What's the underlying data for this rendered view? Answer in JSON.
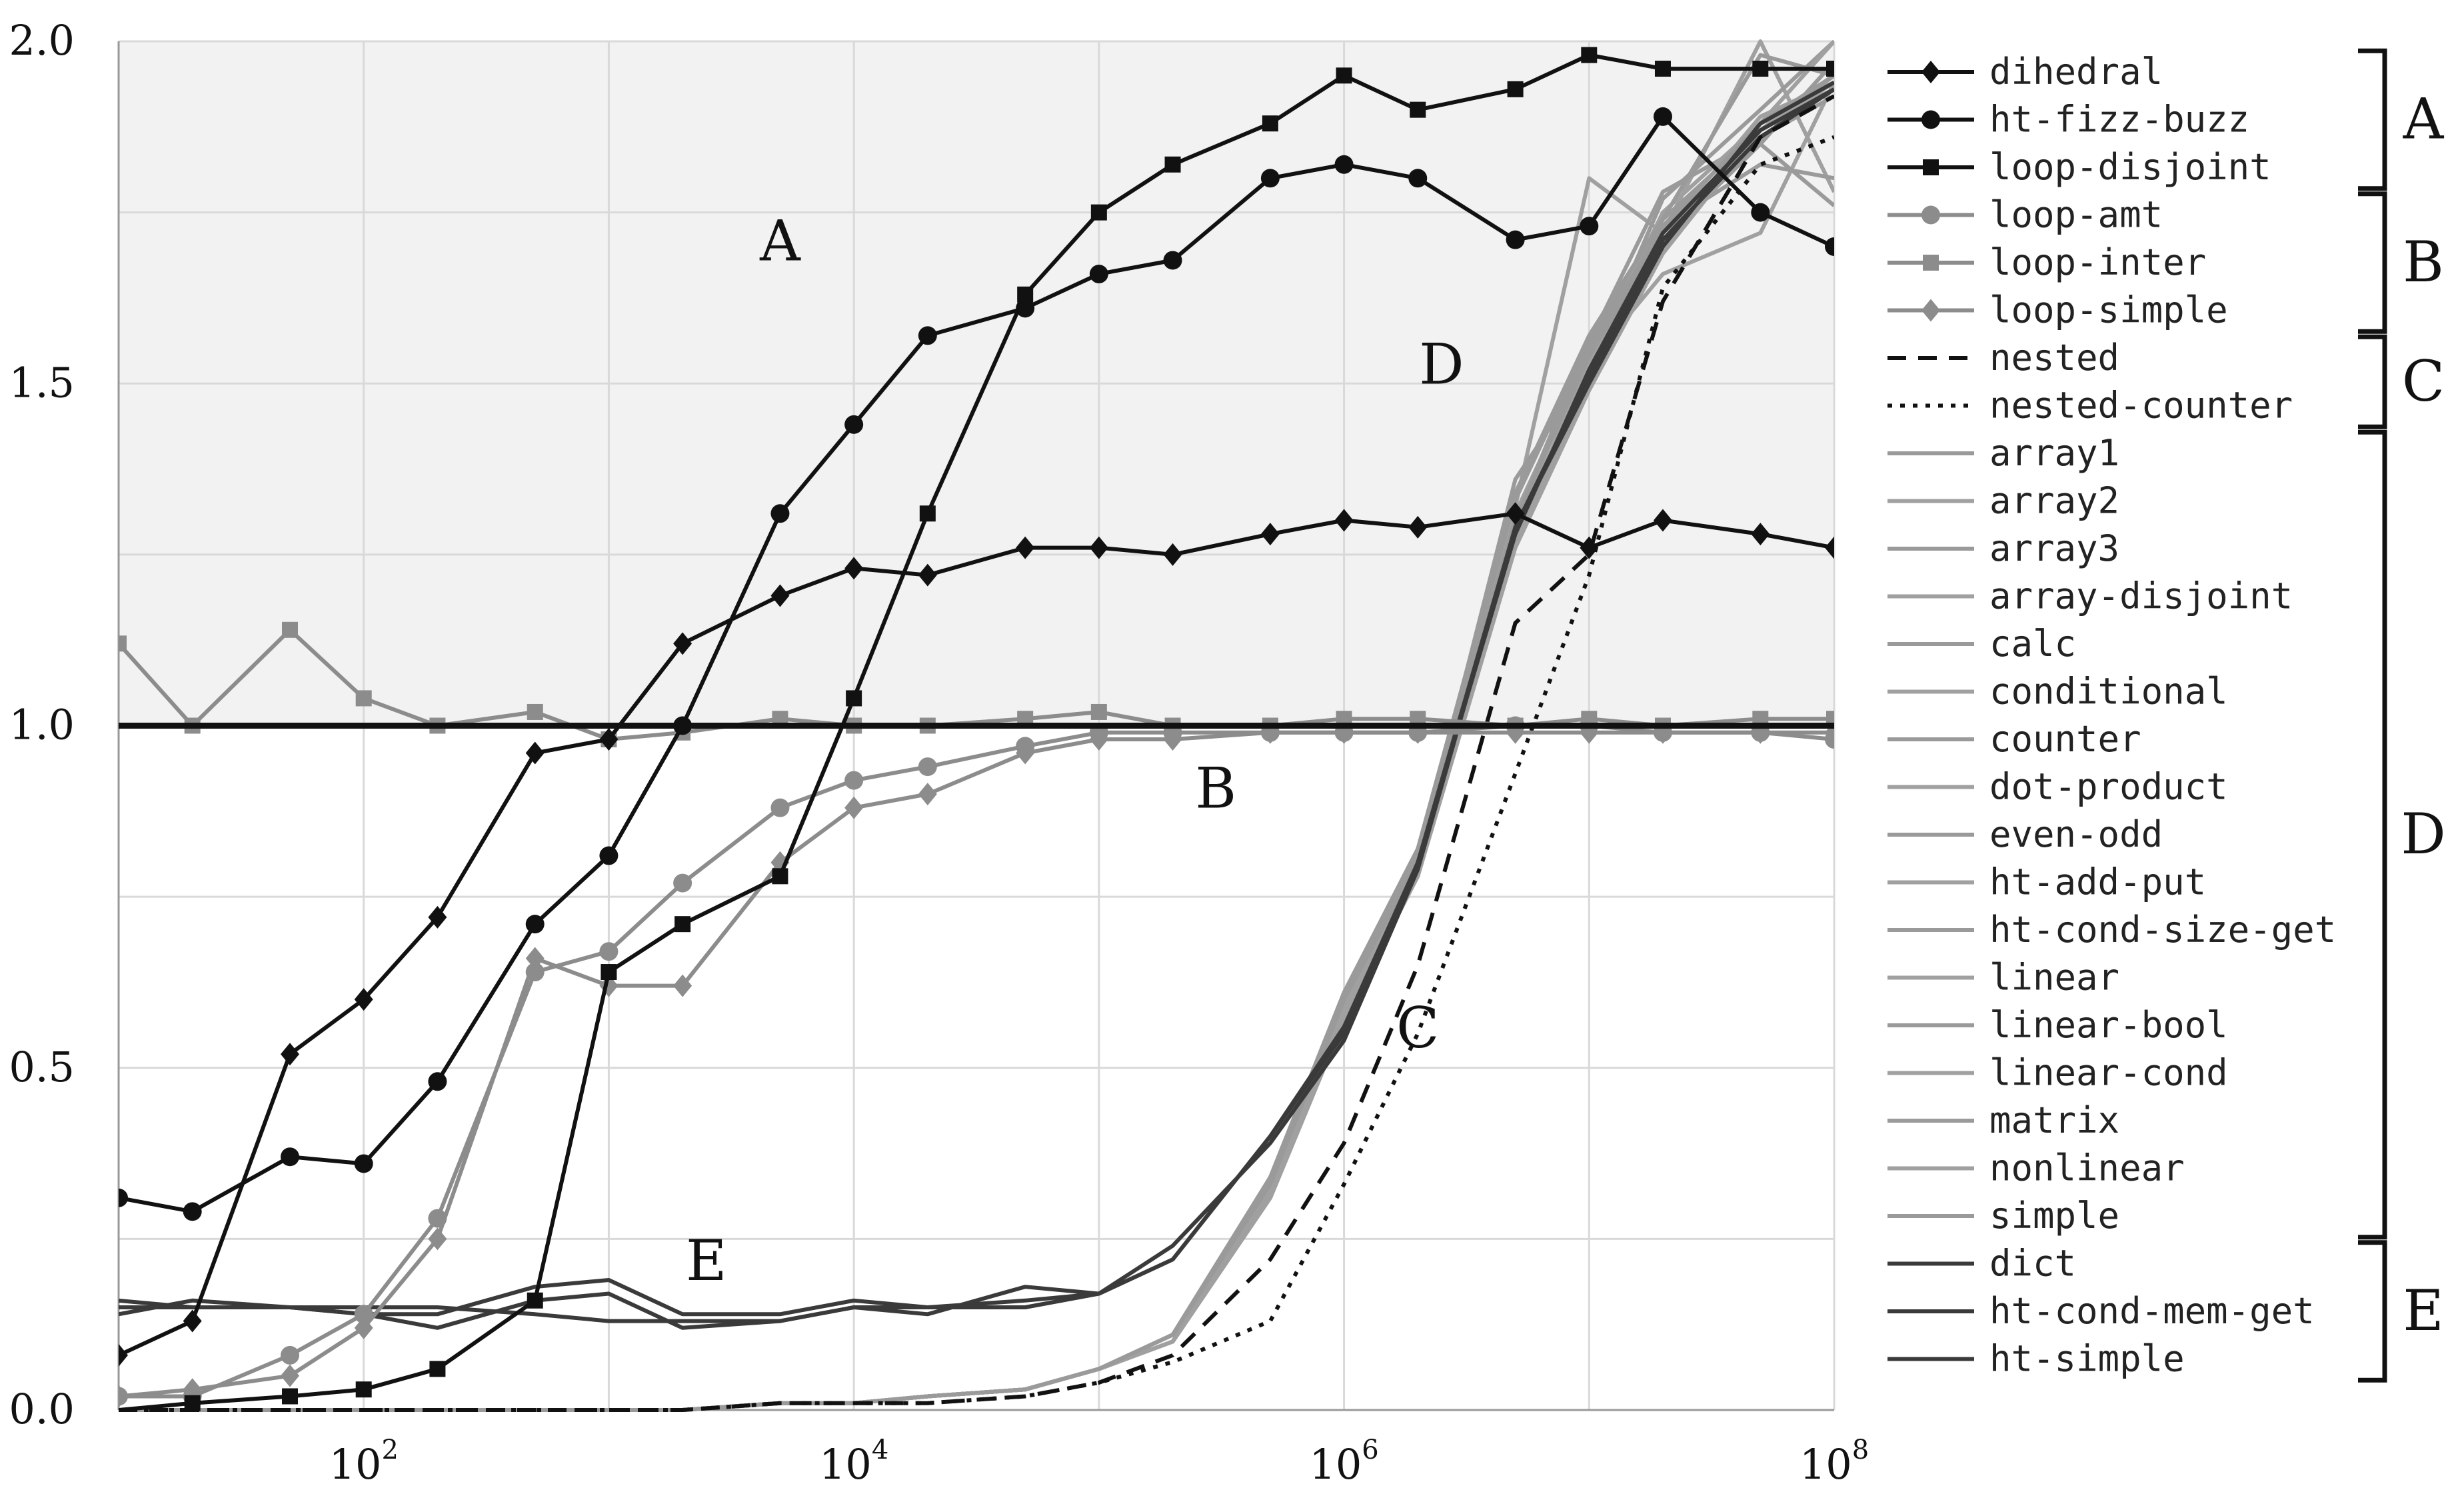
{
  "chart_data": {
    "type": "line",
    "x_scale": "log",
    "xlim": [
      10,
      100000000
    ],
    "ylim": [
      0,
      2.0
    ],
    "x_ticks": [
      {
        "value": 100,
        "base": "10",
        "exp": "2"
      },
      {
        "value": 10000,
        "base": "10",
        "exp": "4"
      },
      {
        "value": 1000000,
        "base": "10",
        "exp": "6"
      },
      {
        "value": 100000000,
        "base": "10",
        "exp": "8"
      }
    ],
    "y_ticks": [
      {
        "value": 0,
        "label": "0.0"
      },
      {
        "value": 0.5,
        "label": "0.5"
      },
      {
        "value": 1.0,
        "label": "1.0"
      },
      {
        "value": 1.5,
        "label": "1.5"
      },
      {
        "value": 2.0,
        "label": "2.0"
      }
    ],
    "grid": true,
    "shaded_region": {
      "y_from": 1.0,
      "y_to": 2.0,
      "color": "#f2f2f2"
    },
    "reference_line": {
      "y": 1.0,
      "color": "#111111"
    },
    "x": [
      10,
      20,
      50,
      100,
      200,
      500,
      1000,
      2000,
      5000,
      10000,
      20000,
      50000,
      100000,
      200000,
      500000,
      1000000,
      2000000,
      5000000,
      10000000,
      20000000,
      50000000,
      100000000
    ],
    "series": [
      {
        "name": "dihedral",
        "group": "A",
        "color": "#111111",
        "marker": "diamond",
        "dash": "solid",
        "values": [
          0.08,
          0.13,
          0.52,
          0.6,
          0.72,
          0.96,
          0.98,
          1.12,
          1.19,
          1.23,
          1.22,
          1.26,
          1.26,
          1.25,
          1.28,
          1.3,
          1.29,
          1.31,
          1.26,
          1.3,
          1.28,
          1.26
        ]
      },
      {
        "name": "ht-fizz-buzz",
        "group": "A",
        "color": "#111111",
        "marker": "circle",
        "dash": "solid",
        "values": [
          0.31,
          0.29,
          0.37,
          0.36,
          0.48,
          0.71,
          0.81,
          1.0,
          1.31,
          1.44,
          1.57,
          1.61,
          1.66,
          1.68,
          1.8,
          1.82,
          1.8,
          1.71,
          1.73,
          1.89,
          1.75,
          1.7
        ]
      },
      {
        "name": "loop-disjoint",
        "group": "A",
        "color": "#111111",
        "marker": "square",
        "dash": "solid",
        "values": [
          0.0,
          0.01,
          0.02,
          0.03,
          0.06,
          0.16,
          0.64,
          0.71,
          0.78,
          1.04,
          1.31,
          1.63,
          1.75,
          1.82,
          1.88,
          1.95,
          1.9,
          1.93,
          1.98,
          1.96,
          1.96,
          1.96
        ]
      },
      {
        "name": "loop-amt",
        "group": "B",
        "color": "#8c8c8c",
        "marker": "circle",
        "dash": "solid",
        "values": [
          0.02,
          0.02,
          0.08,
          0.14,
          0.28,
          0.64,
          0.67,
          0.77,
          0.88,
          0.92,
          0.94,
          0.97,
          0.99,
          0.99,
          0.99,
          0.99,
          0.99,
          1.0,
          1.0,
          0.99,
          0.99,
          0.98
        ]
      },
      {
        "name": "loop-inter",
        "group": "B",
        "color": "#8c8c8c",
        "marker": "square",
        "dash": "solid",
        "values": [
          1.12,
          1.0,
          1.14,
          1.04,
          1.0,
          1.02,
          0.98,
          0.99,
          1.01,
          1.0,
          1.0,
          1.01,
          1.02,
          1.0,
          1.0,
          1.01,
          1.01,
          1.0,
          1.01,
          1.0,
          1.01,
          1.01
        ]
      },
      {
        "name": "loop-simple",
        "group": "B",
        "color": "#8c8c8c",
        "marker": "diamond",
        "dash": "solid",
        "values": [
          0.02,
          0.03,
          0.05,
          0.12,
          0.25,
          0.66,
          0.62,
          0.62,
          0.8,
          0.88,
          0.9,
          0.96,
          0.98,
          0.98,
          0.99,
          0.99,
          0.99,
          0.99,
          0.99,
          0.99,
          0.99,
          0.99
        ]
      },
      {
        "name": "nested",
        "group": "C",
        "color": "#111111",
        "marker": "none",
        "dash": "dashed",
        "values": [
          0.0,
          0.0,
          0.0,
          0.0,
          0.0,
          0.0,
          0.0,
          0.0,
          0.01,
          0.01,
          0.01,
          0.02,
          0.04,
          0.08,
          0.22,
          0.39,
          0.65,
          1.15,
          1.25,
          1.62,
          1.86,
          1.92
        ]
      },
      {
        "name": "nested-counter",
        "group": "C",
        "color": "#111111",
        "marker": "none",
        "dash": "dotted",
        "values": [
          0.0,
          0.0,
          0.0,
          0.0,
          0.0,
          0.0,
          0.0,
          0.0,
          0.01,
          0.01,
          0.01,
          0.02,
          0.04,
          0.07,
          0.13,
          0.33,
          0.55,
          0.93,
          1.22,
          1.64,
          1.82,
          1.86
        ]
      },
      {
        "name": "array1",
        "group": "D",
        "color": "#9a9a9a",
        "marker": "none",
        "dash": "solid",
        "values": [
          0.0,
          0.0,
          0.0,
          0.0,
          0.0,
          0.0,
          0.0,
          0.0,
          0.01,
          0.01,
          0.02,
          0.03,
          0.06,
          0.11,
          0.33,
          0.6,
          0.8,
          1.3,
          1.55,
          1.73,
          1.88,
          1.95
        ]
      },
      {
        "name": "array2",
        "group": "D",
        "color": "#a0a0a0",
        "marker": "none",
        "dash": "solid",
        "values": [
          0.0,
          0.0,
          0.0,
          0.0,
          0.0,
          0.0,
          0.0,
          0.0,
          0.01,
          0.01,
          0.02,
          0.03,
          0.06,
          0.1,
          0.32,
          0.58,
          0.79,
          1.32,
          1.8,
          1.72,
          2.0,
          1.78
        ]
      },
      {
        "name": "array3",
        "group": "D",
        "color": "#9a9a9a",
        "marker": "none",
        "dash": "solid",
        "values": [
          0.0,
          0.0,
          0.0,
          0.0,
          0.0,
          0.0,
          0.0,
          0.0,
          0.01,
          0.01,
          0.02,
          0.03,
          0.06,
          0.11,
          0.33,
          0.59,
          0.8,
          1.36,
          1.52,
          1.77,
          1.9,
          2.0
        ]
      },
      {
        "name": "array-disjoint",
        "group": "D",
        "color": "#a0a0a0",
        "marker": "none",
        "dash": "solid",
        "values": [
          0.0,
          0.0,
          0.0,
          0.0,
          0.0,
          0.0,
          0.0,
          0.0,
          0.01,
          0.01,
          0.02,
          0.03,
          0.06,
          0.1,
          0.31,
          0.57,
          0.78,
          1.27,
          1.5,
          1.7,
          1.88,
          1.93
        ]
      },
      {
        "name": "calc",
        "group": "D",
        "color": "#9a9a9a",
        "marker": "none",
        "dash": "solid",
        "values": [
          0.0,
          0.0,
          0.0,
          0.0,
          0.0,
          0.0,
          0.0,
          0.0,
          0.01,
          0.01,
          0.02,
          0.03,
          0.06,
          0.11,
          0.34,
          0.6,
          0.81,
          1.3,
          1.56,
          1.74,
          1.87,
          1.95
        ]
      },
      {
        "name": "conditional",
        "group": "D",
        "color": "#a0a0a0",
        "marker": "none",
        "dash": "solid",
        "values": [
          0.0,
          0.0,
          0.0,
          0.0,
          0.0,
          0.0,
          0.0,
          0.0,
          0.01,
          0.01,
          0.02,
          0.03,
          0.06,
          0.1,
          0.32,
          0.58,
          0.79,
          1.28,
          1.53,
          1.66,
          1.72,
          1.94
        ]
      },
      {
        "name": "counter",
        "group": "D",
        "color": "#9a9a9a",
        "marker": "none",
        "dash": "solid",
        "values": [
          0.0,
          0.0,
          0.0,
          0.0,
          0.0,
          0.0,
          0.0,
          0.0,
          0.01,
          0.01,
          0.02,
          0.03,
          0.06,
          0.11,
          0.33,
          0.59,
          0.8,
          1.31,
          1.54,
          1.71,
          1.85,
          1.97
        ]
      },
      {
        "name": "dot-product",
        "group": "D",
        "color": "#a0a0a0",
        "marker": "none",
        "dash": "solid",
        "values": [
          0.0,
          0.0,
          0.0,
          0.0,
          0.0,
          0.0,
          0.0,
          0.0,
          0.01,
          0.01,
          0.02,
          0.03,
          0.06,
          0.1,
          0.32,
          0.58,
          0.79,
          1.29,
          1.5,
          1.72,
          1.89,
          1.94
        ]
      },
      {
        "name": "even-odd",
        "group": "D",
        "color": "#9a9a9a",
        "marker": "none",
        "dash": "solid",
        "values": [
          0.0,
          0.0,
          0.0,
          0.0,
          0.0,
          0.0,
          0.0,
          0.0,
          0.01,
          0.01,
          0.02,
          0.03,
          0.06,
          0.11,
          0.34,
          0.61,
          0.82,
          1.33,
          1.56,
          1.78,
          1.86,
          1.92
        ]
      },
      {
        "name": "ht-add-put",
        "group": "D",
        "color": "#a0a0a0",
        "marker": "none",
        "dash": "solid",
        "values": [
          0.0,
          0.0,
          0.0,
          0.0,
          0.0,
          0.0,
          0.0,
          0.0,
          0.01,
          0.01,
          0.02,
          0.03,
          0.06,
          0.1,
          0.31,
          0.57,
          0.78,
          1.26,
          1.49,
          1.69,
          1.87,
          1.95
        ]
      },
      {
        "name": "ht-cond-size-get",
        "group": "D",
        "color": "#9a9a9a",
        "marker": "none",
        "dash": "solid",
        "values": [
          0.0,
          0.0,
          0.0,
          0.0,
          0.0,
          0.0,
          0.0,
          0.0,
          0.01,
          0.01,
          0.02,
          0.03,
          0.06,
          0.11,
          0.33,
          0.6,
          0.8,
          1.3,
          1.55,
          1.73,
          1.82,
          1.8
        ]
      },
      {
        "name": "linear",
        "group": "D",
        "color": "#a0a0a0",
        "marker": "none",
        "dash": "solid",
        "values": [
          0.0,
          0.0,
          0.0,
          0.0,
          0.0,
          0.0,
          0.0,
          0.0,
          0.01,
          0.01,
          0.02,
          0.03,
          0.06,
          0.1,
          0.32,
          0.59,
          0.79,
          1.31,
          1.53,
          1.75,
          1.88,
          2.0
        ]
      },
      {
        "name": "linear-bool",
        "group": "D",
        "color": "#9a9a9a",
        "marker": "none",
        "dash": "solid",
        "values": [
          0.0,
          0.0,
          0.0,
          0.0,
          0.0,
          0.0,
          0.0,
          0.0,
          0.01,
          0.01,
          0.02,
          0.03,
          0.06,
          0.11,
          0.33,
          0.6,
          0.81,
          1.3,
          1.54,
          1.72,
          1.85,
          1.76
        ]
      },
      {
        "name": "linear-cond",
        "group": "D",
        "color": "#a0a0a0",
        "marker": "none",
        "dash": "solid",
        "values": [
          0.0,
          0.0,
          0.0,
          0.0,
          0.0,
          0.0,
          0.0,
          0.0,
          0.01,
          0.01,
          0.02,
          0.03,
          0.06,
          0.1,
          0.32,
          0.58,
          0.79,
          1.29,
          1.52,
          1.71,
          1.86,
          1.93
        ]
      },
      {
        "name": "matrix",
        "group": "D",
        "color": "#9a9a9a",
        "marker": "none",
        "dash": "solid",
        "values": [
          0.0,
          0.0,
          0.0,
          0.0,
          0.0,
          0.0,
          0.0,
          0.0,
          0.01,
          0.01,
          0.02,
          0.03,
          0.06,
          0.11,
          0.34,
          0.61,
          0.82,
          1.34,
          1.57,
          1.74,
          1.98,
          1.95
        ]
      },
      {
        "name": "nonlinear",
        "group": "D",
        "color": "#a0a0a0",
        "marker": "none",
        "dash": "solid",
        "values": [
          0.0,
          0.0,
          0.0,
          0.0,
          0.0,
          0.0,
          0.0,
          0.0,
          0.01,
          0.01,
          0.02,
          0.03,
          0.06,
          0.1,
          0.31,
          0.57,
          0.78,
          1.27,
          1.51,
          1.7,
          1.87,
          1.94
        ]
      },
      {
        "name": "simple",
        "group": "D",
        "color": "#9a9a9a",
        "marker": "none",
        "dash": "solid",
        "values": [
          0.0,
          0.0,
          0.0,
          0.0,
          0.0,
          0.0,
          0.0,
          0.0,
          0.01,
          0.01,
          0.02,
          0.03,
          0.06,
          0.11,
          0.33,
          0.6,
          0.8,
          1.3,
          1.55,
          1.73,
          1.88,
          1.95
        ]
      },
      {
        "name": "dict",
        "group": "E",
        "color": "#3a3a3a",
        "marker": "none",
        "dash": "solid",
        "values": [
          0.15,
          0.15,
          0.15,
          0.14,
          0.14,
          0.18,
          0.19,
          0.14,
          0.14,
          0.16,
          0.15,
          0.16,
          0.17,
          0.22,
          0.4,
          0.55,
          0.8,
          1.28,
          1.52,
          1.72,
          1.87,
          1.93
        ]
      },
      {
        "name": "ht-cond-mem-get",
        "group": "E",
        "color": "#3a3a3a",
        "marker": "none",
        "dash": "solid",
        "values": [
          0.14,
          0.16,
          0.15,
          0.14,
          0.12,
          0.16,
          0.17,
          0.12,
          0.13,
          0.15,
          0.14,
          0.18,
          0.17,
          0.24,
          0.39,
          0.54,
          0.79,
          1.29,
          1.51,
          1.71,
          1.86,
          1.93
        ]
      },
      {
        "name": "ht-simple",
        "group": "E",
        "color": "#3a3a3a",
        "marker": "none",
        "dash": "solid",
        "values": [
          0.16,
          0.15,
          0.15,
          0.15,
          0.15,
          0.14,
          0.13,
          0.13,
          0.13,
          0.15,
          0.15,
          0.15,
          0.17,
          0.22,
          0.4,
          0.56,
          0.8,
          1.29,
          1.5,
          1.7,
          1.88,
          1.94
        ]
      }
    ],
    "legend": {
      "placement": "right"
    },
    "legend_groups": [
      {
        "label": "A",
        "series": [
          "dihedral",
          "ht-fizz-buzz",
          "loop-disjoint"
        ]
      },
      {
        "label": "B",
        "series": [
          "loop-amt",
          "loop-inter",
          "loop-simple"
        ]
      },
      {
        "label": "C",
        "series": [
          "nested",
          "nested-counter"
        ]
      },
      {
        "label": "D",
        "series": [
          "array1",
          "array2",
          "array3",
          "array-disjoint",
          "calc",
          "conditional",
          "counter",
          "dot-product",
          "even-odd",
          "ht-add-put",
          "ht-cond-size-get",
          "linear",
          "linear-bool",
          "linear-cond",
          "matrix",
          "nonlinear",
          "simple"
        ]
      },
      {
        "label": "E",
        "series": [
          "dict",
          "ht-cond-mem-get",
          "ht-simple"
        ]
      }
    ],
    "annotations": [
      {
        "text": "A",
        "x": 5000,
        "y": 1.68
      },
      {
        "text": "B",
        "x": 300000,
        "y": 0.88
      },
      {
        "text": "C",
        "x": 2000000,
        "y": 0.53
      },
      {
        "text": "D",
        "x": 2500000,
        "y": 1.5
      },
      {
        "text": "E",
        "x": 2500,
        "y": 0.19
      }
    ]
  }
}
